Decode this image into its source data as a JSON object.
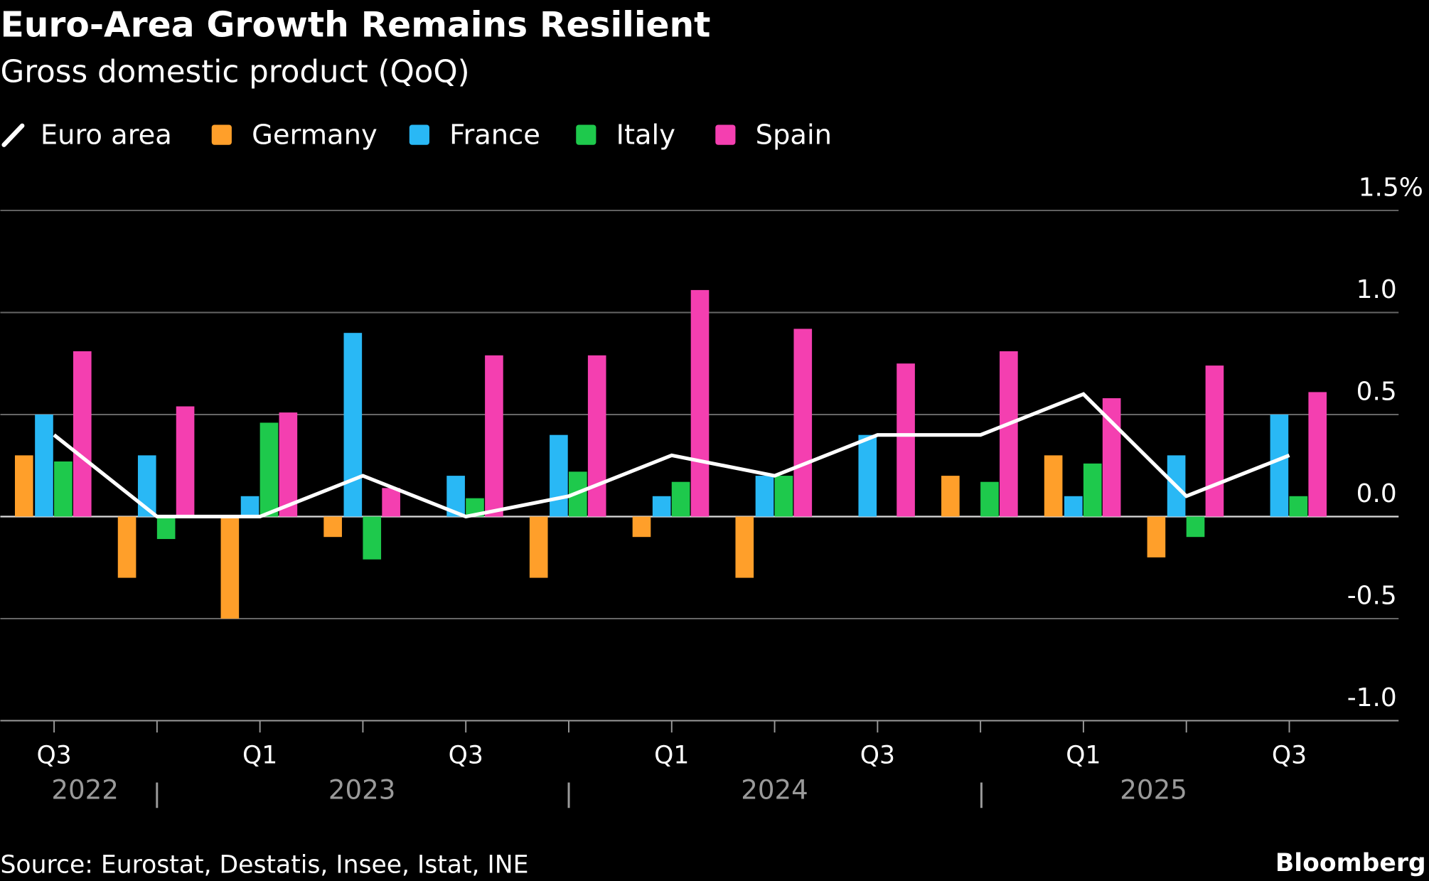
{
  "chart_data": {
    "type": "bar",
    "title": "Euro-Area Growth Remains Resilient",
    "subtitle": "Gross domestic product (QoQ)",
    "categories": [
      "Q3",
      null,
      "Q1",
      null,
      "Q3",
      null,
      "Q1",
      null,
      "Q3",
      null,
      "Q1",
      null,
      "Q3"
    ],
    "year_labels": [
      "2022",
      "2023",
      "2024",
      "2025"
    ],
    "series": [
      {
        "name": "Euro area",
        "type": "line",
        "color": "#ffffff",
        "values": [
          0.4,
          0.0,
          0.0,
          0.2,
          0.0,
          0.1,
          0.3,
          0.2,
          0.4,
          0.4,
          0.6,
          0.1,
          0.3
        ]
      },
      {
        "name": "Germany",
        "color": "#ff9f2a",
        "values": [
          0.3,
          -0.3,
          -0.5,
          -0.1,
          0.0,
          -0.3,
          -0.1,
          -0.3,
          0.0,
          0.2,
          0.3,
          -0.2,
          0.0
        ]
      },
      {
        "name": "France",
        "color": "#29b8f5",
        "values": [
          0.5,
          0.3,
          0.1,
          0.9,
          0.2,
          0.4,
          0.1,
          0.2,
          0.4,
          0.0,
          0.1,
          0.3,
          0.5
        ]
      },
      {
        "name": "Italy",
        "color": "#1ec94c",
        "values": [
          0.27,
          -0.11,
          0.46,
          -0.21,
          0.09,
          0.22,
          0.17,
          0.2,
          0.0,
          0.17,
          0.26,
          -0.1,
          0.1
        ]
      },
      {
        "name": "Spain",
        "color": "#f43fb0",
        "values": [
          0.81,
          0.54,
          0.51,
          0.14,
          0.79,
          0.79,
          1.11,
          0.92,
          0.75,
          0.81,
          0.58,
          0.74,
          0.61
        ]
      }
    ],
    "ylim": [
      -1.0,
      1.5
    ],
    "yticks": [
      {
        "value": -1.0,
        "label": "-1.0"
      },
      -0.5,
      {
        "value": 0.0,
        "label": "0.0"
      },
      0.5,
      {
        "value": 1.0,
        "label": "1.0"
      },
      {
        "value": 1.5,
        "label": "1.5%"
      }
    ],
    "grid": true,
    "legend": "top-left",
    "source": "Source: Eurostat, Destatis, Insee, Istat, INE",
    "brand": "Bloomberg"
  }
}
